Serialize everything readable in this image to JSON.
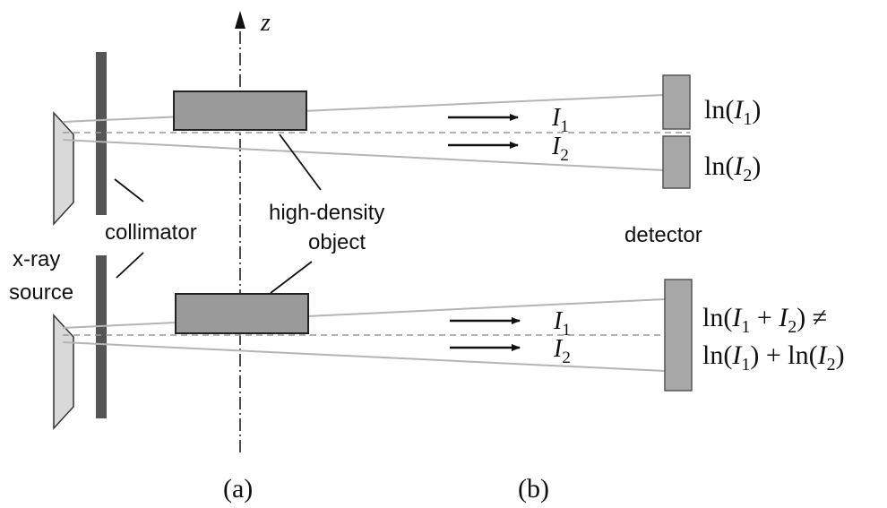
{
  "axis": {
    "label": "z"
  },
  "labels": {
    "xray_source_line1": "x-ray",
    "xray_source_line2": "source",
    "collimator": "collimator",
    "object_line1": "high-density",
    "object_line2": "object",
    "detector": "detector"
  },
  "beams": {
    "i1": "I",
    "i1_sub": "1",
    "i2": "I",
    "i2_sub": "2"
  },
  "equations": {
    "top1_pre": "ln(",
    "top1_var": "I",
    "top1_sub": "1",
    "top1_post": ")",
    "top2_pre": "ln(",
    "top2_var": "I",
    "top2_sub": "2",
    "top2_post": ")",
    "bottom_line1_pre": "ln(",
    "bottom_line1_var1": "I",
    "bottom_line1_sub1": "1",
    "bottom_line1_plus": " + ",
    "bottom_line1_var2": "I",
    "bottom_line1_sub2": "2",
    "bottom_line1_post": ") ≠",
    "bottom_line2_pre1": "ln(",
    "bottom_line2_var1": "I",
    "bottom_line2_sub1": "1",
    "bottom_line2_mid": ") + ln(",
    "bottom_line2_var2": "I",
    "bottom_line2_sub2": "2",
    "bottom_line2_post": ")"
  },
  "captions": {
    "a": "(a)",
    "b": "(b)"
  },
  "colors": {
    "object_fill": "#9a9a9a",
    "detector_fill": "#a8a8a8",
    "source_fill": "#d9d9d9",
    "collimator_fill": "#555555",
    "ray_line": "#b5b5b5",
    "dash_line": "#999999"
  }
}
